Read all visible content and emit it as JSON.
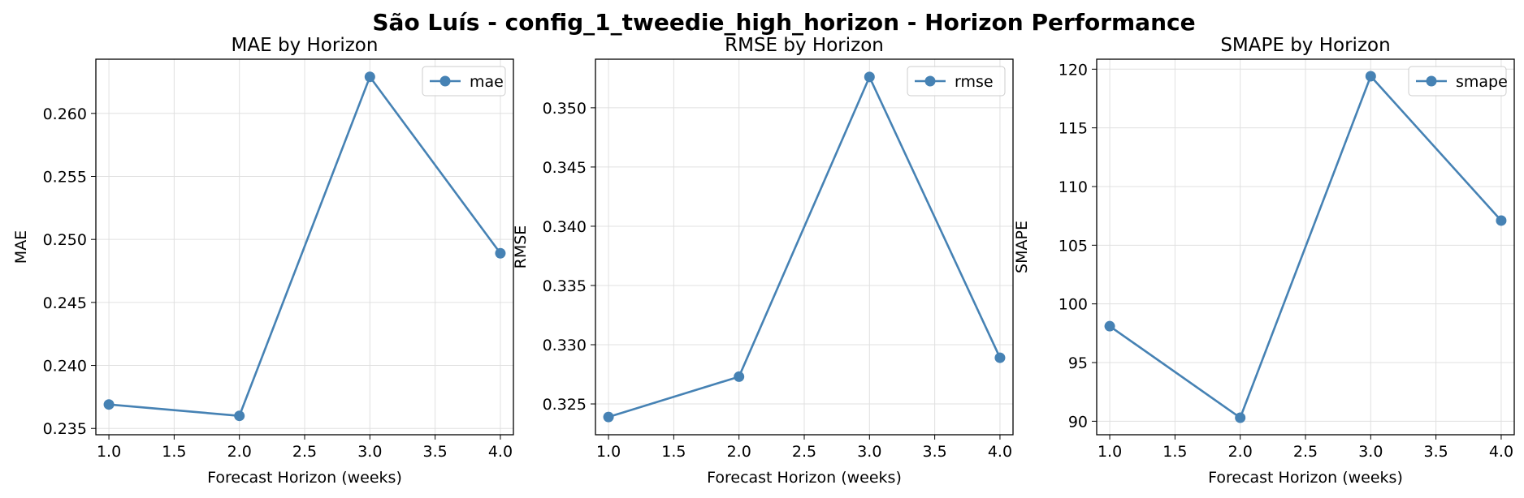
{
  "figure_title": "São Luís - config_1_tweedie_high_horizon - Horizon Performance",
  "colors": {
    "series": "#4682b4",
    "grid": "#e0e0e0",
    "axis": "#000000"
  },
  "chart_data": [
    {
      "type": "line",
      "title": "MAE by Horizon",
      "xlabel": "Forecast Horizon (weeks)",
      "ylabel": "MAE",
      "x": [
        1.0,
        2.0,
        3.0,
        4.0
      ],
      "series": [
        {
          "name": "mae",
          "values": [
            0.2369,
            0.236,
            0.2629,
            0.2489
          ]
        }
      ],
      "xlim": [
        0.9,
        4.1
      ],
      "ylim": [
        0.2345,
        0.2643
      ],
      "xticks": [
        "1.0",
        "1.5",
        "2.0",
        "2.5",
        "3.0",
        "3.5",
        "4.0"
      ],
      "yticks": [
        "0.235",
        "0.240",
        "0.245",
        "0.250",
        "0.255",
        "0.260"
      ],
      "grid": true,
      "legend": "upper right"
    },
    {
      "type": "line",
      "title": "RMSE by Horizon",
      "xlabel": "Forecast Horizon (weeks)",
      "ylabel": "RMSE",
      "x": [
        1.0,
        2.0,
        3.0,
        4.0
      ],
      "series": [
        {
          "name": "rmse",
          "values": [
            0.3239,
            0.3273,
            0.3526,
            0.3289
          ]
        }
      ],
      "xlim": [
        0.9,
        4.1
      ],
      "ylim": [
        0.3224,
        0.3541
      ],
      "xticks": [
        "1.0",
        "1.5",
        "2.0",
        "2.5",
        "3.0",
        "3.5",
        "4.0"
      ],
      "yticks": [
        "0.325",
        "0.330",
        "0.335",
        "0.340",
        "0.345",
        "0.350"
      ],
      "grid": true,
      "legend": "upper right"
    },
    {
      "type": "line",
      "title": "SMAPE by Horizon",
      "xlabel": "Forecast Horizon (weeks)",
      "ylabel": "SMAPE",
      "x": [
        1.0,
        2.0,
        3.0,
        4.0
      ],
      "series": [
        {
          "name": "smape",
          "values": [
            98.1,
            90.3,
            119.4,
            107.1
          ]
        }
      ],
      "xlim": [
        0.9,
        4.1
      ],
      "ylim": [
        88.85,
        120.85
      ],
      "xticks": [
        "1.0",
        "1.5",
        "2.0",
        "2.5",
        "3.0",
        "3.5",
        "4.0"
      ],
      "yticks": [
        "90",
        "95",
        "100",
        "105",
        "110",
        "115",
        "120"
      ],
      "grid": true,
      "legend": "upper right"
    }
  ]
}
